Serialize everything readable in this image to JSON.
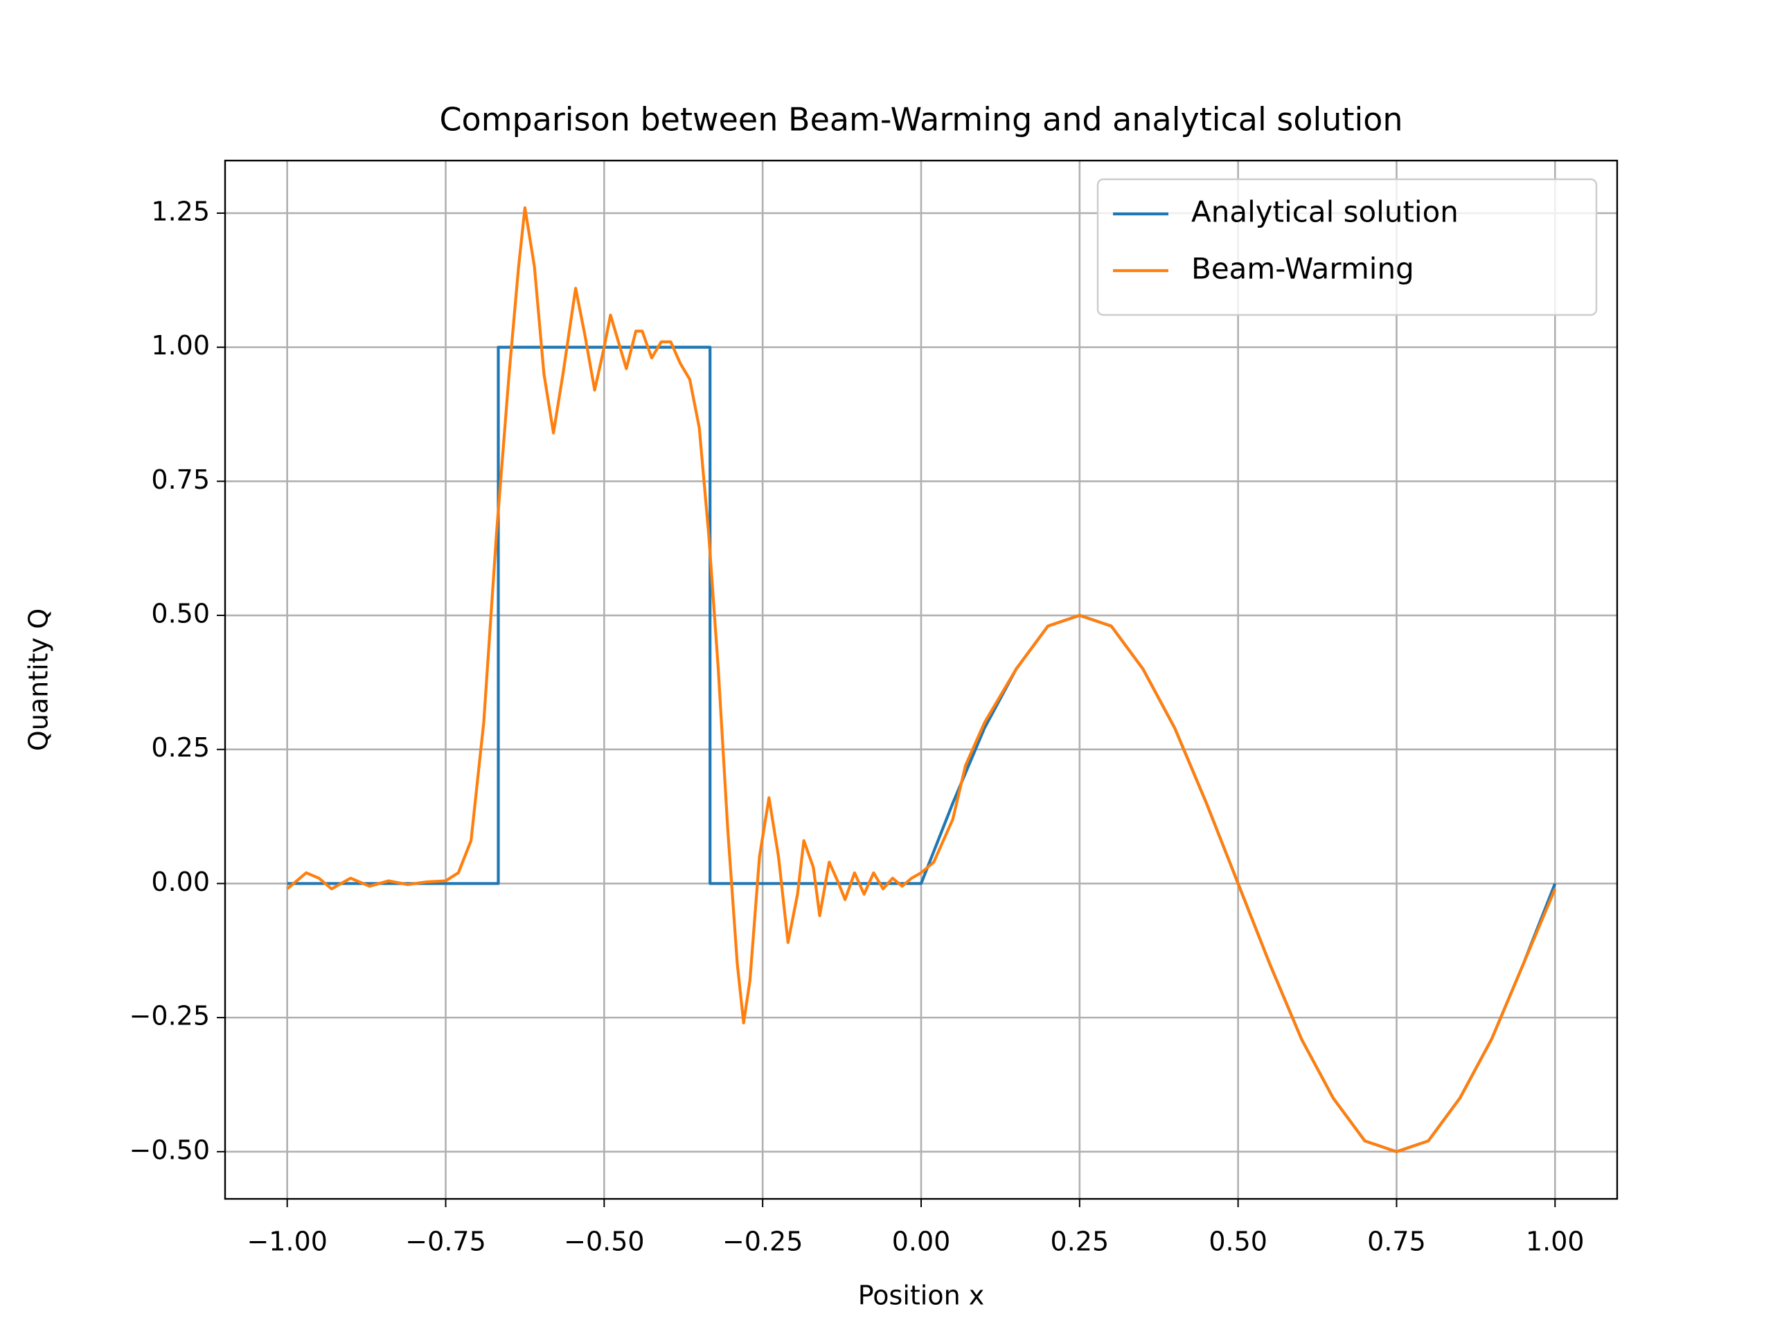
{
  "chart_data": {
    "type": "line",
    "title": "Comparison between Beam-Warming and analytical solution",
    "xlabel": "Position x",
    "ylabel": "Quantity Q",
    "xlim": [
      -1.098,
      1.098
    ],
    "ylim": [
      -0.588,
      1.348
    ],
    "xticks": [
      {
        "value": -1,
        "label": "−1.00"
      },
      {
        "value": -0.75,
        "label": "−0.75"
      },
      {
        "value": -0.5,
        "label": "−0.50"
      },
      {
        "value": -0.25,
        "label": "−0.25"
      },
      {
        "value": 0,
        "label": "0.00"
      },
      {
        "value": 0.25,
        "label": "0.25"
      },
      {
        "value": 0.5,
        "label": "0.50"
      },
      {
        "value": 0.75,
        "label": "0.75"
      },
      {
        "value": 1,
        "label": "1.00"
      }
    ],
    "yticks": [
      {
        "value": -0.5,
        "label": "−0.50"
      },
      {
        "value": -0.25,
        "label": "−0.25"
      },
      {
        "value": 0,
        "label": "0.00"
      },
      {
        "value": 0.25,
        "label": "0.25"
      },
      {
        "value": 0.5,
        "label": "0.50"
      },
      {
        "value": 0.75,
        "label": "0.75"
      },
      {
        "value": 1,
        "label": "1.00"
      },
      {
        "value": 1.25,
        "label": "1.25"
      }
    ],
    "grid": true,
    "legend": "upper right",
    "series": [
      {
        "name": "Analytical solution",
        "color": "#1f77b4",
        "x": [
          -1,
          -0.667,
          -0.667,
          -0.333,
          -0.333,
          0,
          0.05,
          0.1,
          0.15,
          0.2,
          0.25,
          0.3,
          0.35,
          0.4,
          0.45,
          0.5,
          0.55,
          0.6,
          0.65,
          0.7,
          0.75,
          0.8,
          0.85,
          0.9,
          0.95,
          1
        ],
        "values": [
          0,
          0,
          1,
          1,
          0,
          0,
          0.15,
          0.29,
          0.4,
          0.48,
          0.5,
          0.48,
          0.4,
          0.29,
          0.15,
          0,
          -0.15,
          -0.29,
          -0.4,
          -0.48,
          -0.5,
          -0.48,
          -0.4,
          -0.29,
          -0.15,
          0
        ]
      },
      {
        "name": "Beam-Warming",
        "color": "#ff7f0e",
        "x": [
          -1,
          -0.97,
          -0.95,
          -0.93,
          -0.9,
          -0.87,
          -0.84,
          -0.81,
          -0.78,
          -0.75,
          -0.73,
          -0.71,
          -0.69,
          -0.67,
          -0.65,
          -0.635,
          -0.625,
          -0.61,
          -0.595,
          -0.58,
          -0.565,
          -0.545,
          -0.53,
          -0.515,
          -0.5,
          -0.49,
          -0.475,
          -0.465,
          -0.45,
          -0.44,
          -0.425,
          -0.41,
          -0.395,
          -0.38,
          -0.365,
          -0.35,
          -0.335,
          -0.32,
          -0.305,
          -0.29,
          -0.28,
          -0.27,
          -0.255,
          -0.24,
          -0.225,
          -0.21,
          -0.195,
          -0.185,
          -0.17,
          -0.16,
          -0.145,
          -0.13,
          -0.12,
          -0.105,
          -0.09,
          -0.075,
          -0.06,
          -0.045,
          -0.03,
          -0.015,
          0,
          0.02,
          0.05,
          0.07,
          0.1,
          0.15,
          0.2,
          0.25,
          0.3,
          0.35,
          0.4,
          0.45,
          0.5,
          0.55,
          0.6,
          0.65,
          0.7,
          0.75,
          0.8,
          0.85,
          0.9,
          0.95,
          1
        ],
        "values": [
          -0.01,
          0.02,
          0.01,
          -0.01,
          0.01,
          -0.005,
          0.005,
          -0.002,
          0.003,
          0.005,
          0.02,
          0.08,
          0.3,
          0.65,
          0.95,
          1.15,
          1.26,
          1.15,
          0.95,
          0.84,
          0.95,
          1.11,
          1.02,
          0.92,
          1.0,
          1.06,
          1.0,
          0.96,
          1.03,
          1.03,
          0.98,
          1.01,
          1.01,
          0.97,
          0.94,
          0.85,
          0.65,
          0.4,
          0.1,
          -0.15,
          -0.26,
          -0.18,
          0.05,
          0.16,
          0.05,
          -0.11,
          -0.02,
          0.08,
          0.03,
          -0.06,
          0.04,
          0.0,
          -0.03,
          0.02,
          -0.02,
          0.02,
          -0.01,
          0.01,
          -0.005,
          0.01,
          0.02,
          0.04,
          0.12,
          0.22,
          0.3,
          0.4,
          0.48,
          0.5,
          0.48,
          0.4,
          0.29,
          0.15,
          0,
          -0.15,
          -0.29,
          -0.4,
          -0.48,
          -0.5,
          -0.48,
          -0.4,
          -0.29,
          -0.15,
          -0.01
        ]
      }
    ]
  }
}
